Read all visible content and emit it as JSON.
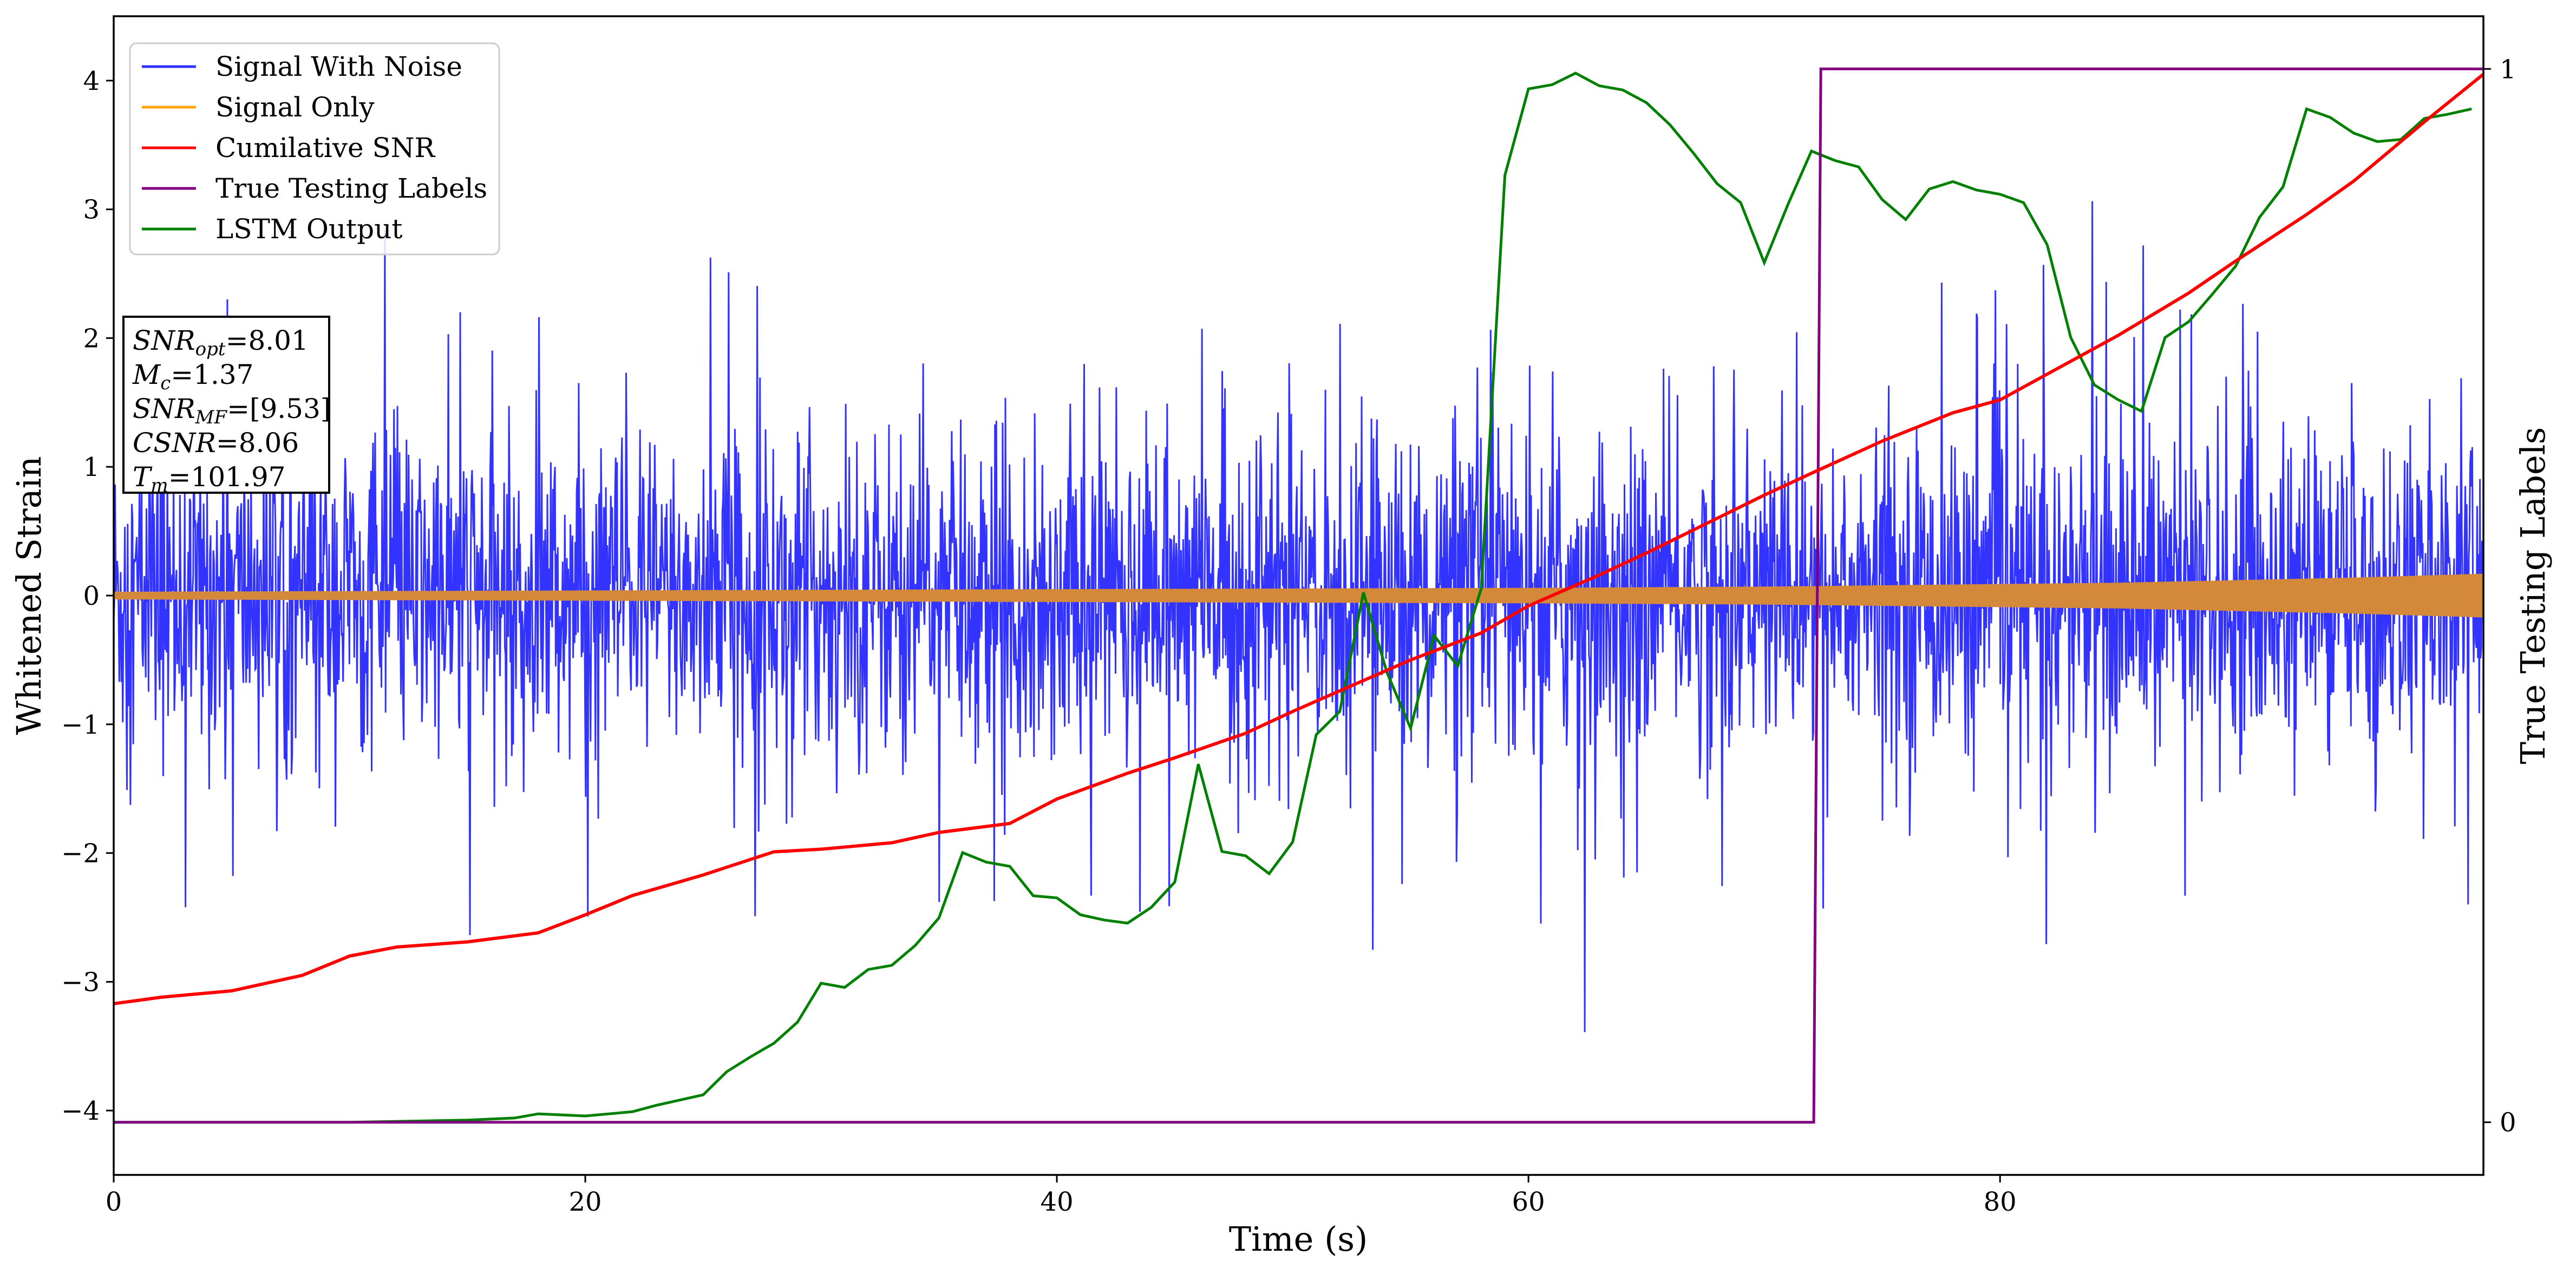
{
  "chart_data": {
    "type": "line",
    "title": "",
    "xlabel": "Time (s)",
    "ylabel": "Whitened Strain",
    "y2label": "True Testing Labels",
    "xlim": [
      0,
      100.5
    ],
    "ylim": [
      -4.5,
      4.5
    ],
    "y2lim": [
      -0.05,
      1.05
    ],
    "xticks": [
      0,
      20,
      40,
      60,
      80
    ],
    "xtick_labels": [
      "0",
      "20",
      "40",
      "60",
      "80"
    ],
    "yticks": [
      -4,
      -3,
      -2,
      -1,
      0,
      1,
      2,
      3,
      4
    ],
    "ytick_labels": [
      "−4",
      "−3",
      "−2",
      "−1",
      "0",
      "1",
      "2",
      "3",
      "4"
    ],
    "y2ticks": [
      0,
      1
    ],
    "y2tick_labels": [
      "0",
      "1"
    ],
    "grid": false,
    "legend_position": "top-left",
    "legend": [
      "Signal With Noise",
      "Signal Only",
      "Cumilative SNR",
      "True Testing Labels",
      "LSTM Output"
    ],
    "colors": {
      "noise": "#3333ff",
      "signal": "#ffa500",
      "signal_overlap": "#d4893a",
      "csnr": "#ff0000",
      "labels": "#800080",
      "lstm": "#008000"
    },
    "series": [
      {
        "name": "Signal With Noise",
        "axis": "left",
        "style": "dense noise band",
        "x_range": [
          0,
          100.5
        ],
        "typical_range": [
          -1.0,
          1.0
        ],
        "min": -3.5,
        "max": 4.1
      },
      {
        "name": "Signal Only",
        "axis": "left",
        "style": "envelope",
        "envelope": {
          "x": [
            0,
            10,
            20,
            30,
            40,
            50,
            60,
            70,
            75,
            80,
            85,
            90,
            95,
            100.5
          ],
          "amplitude": [
            0.03,
            0.035,
            0.04,
            0.045,
            0.05,
            0.055,
            0.06,
            0.07,
            0.08,
            0.09,
            0.1,
            0.12,
            0.14,
            0.17
          ]
        }
      },
      {
        "name": "Cumilative SNR",
        "axis": "left",
        "x": [
          0,
          2,
          5,
          8,
          10,
          12,
          15,
          18,
          20,
          22,
          25,
          28,
          30,
          33,
          35,
          38,
          40,
          43,
          45,
          48,
          50,
          53,
          55,
          58,
          60,
          63,
          65,
          68,
          70,
          72,
          75,
          78,
          80,
          83,
          85,
          88,
          90,
          93,
          95,
          98,
          100.5
        ],
        "y": [
          -3.17,
          -3.12,
          -3.07,
          -2.95,
          -2.8,
          -2.73,
          -2.69,
          -2.62,
          -2.48,
          -2.33,
          -2.17,
          -1.99,
          -1.97,
          -1.92,
          -1.84,
          -1.77,
          -1.58,
          -1.38,
          -1.26,
          -1.07,
          -0.9,
          -0.66,
          -0.5,
          -0.29,
          -0.08,
          0.16,
          0.33,
          0.6,
          0.78,
          0.95,
          1.2,
          1.42,
          1.52,
          1.82,
          2.02,
          2.35,
          2.6,
          2.96,
          3.22,
          3.68,
          4.05
        ]
      },
      {
        "name": "True Testing Labels",
        "axis": "right",
        "x": [
          0,
          72.1,
          72.4,
          100.5
        ],
        "y": [
          0,
          0,
          1,
          1
        ]
      },
      {
        "name": "LSTM Output",
        "axis": "right",
        "x": [
          0,
          10,
          15,
          17,
          18,
          20,
          22,
          23,
          25,
          26,
          27,
          28,
          29,
          30,
          31,
          32,
          33,
          34,
          35,
          36,
          37,
          38,
          39,
          40,
          41,
          42,
          43,
          44,
          45,
          46,
          47,
          48,
          49,
          50,
          51,
          52,
          53,
          54,
          55,
          56,
          57,
          58,
          59,
          60,
          61,
          62,
          63,
          64,
          65,
          66,
          67,
          68,
          69,
          70,
          71,
          72,
          73,
          74,
          75,
          76,
          77,
          78,
          79,
          80,
          81,
          82,
          83,
          84,
          85,
          86,
          87,
          88,
          89,
          90,
          91,
          92,
          93,
          94,
          95,
          96,
          97,
          98,
          99,
          100
        ],
        "y": [
          0,
          0,
          0.002,
          0.004,
          0.008,
          0.006,
          0.01,
          0.016,
          0.026,
          0.048,
          0.062,
          0.075,
          0.095,
          0.132,
          0.128,
          0.145,
          0.149,
          0.168,
          0.194,
          0.256,
          0.247,
          0.243,
          0.215,
          0.213,
          0.197,
          0.192,
          0.189,
          0.204,
          0.228,
          0.34,
          0.257,
          0.253,
          0.236,
          0.266,
          0.368,
          0.39,
          0.503,
          0.427,
          0.374,
          0.462,
          0.433,
          0.507,
          0.899,
          0.981,
          0.985,
          0.996,
          0.984,
          0.98,
          0.968,
          0.947,
          0.92,
          0.891,
          0.873,
          0.816,
          0.871,
          0.922,
          0.913,
          0.907,
          0.876,
          0.857,
          0.886,
          0.893,
          0.885,
          0.881,
          0.873,
          0.833,
          0.745,
          0.7,
          0.686,
          0.675,
          0.745,
          0.76,
          0.786,
          0.813,
          0.859,
          0.888,
          0.962,
          0.954,
          0.939,
          0.931,
          0.933,
          0.953,
          0.957,
          0.962
        ]
      }
    ],
    "annotation": {
      "lines": [
        {
          "italic": "SNR",
          "sub": "opt",
          "value": "=8.01"
        },
        {
          "italic": "M",
          "sub": "c",
          "value": "=1.37"
        },
        {
          "italic": "SNR",
          "sub": "MF",
          "value": "=[9.53]"
        },
        {
          "italic": "CSNR",
          "sub": "",
          "value": "=8.06"
        },
        {
          "italic": "T",
          "sub": "m",
          "value": "=101.97"
        }
      ]
    }
  }
}
